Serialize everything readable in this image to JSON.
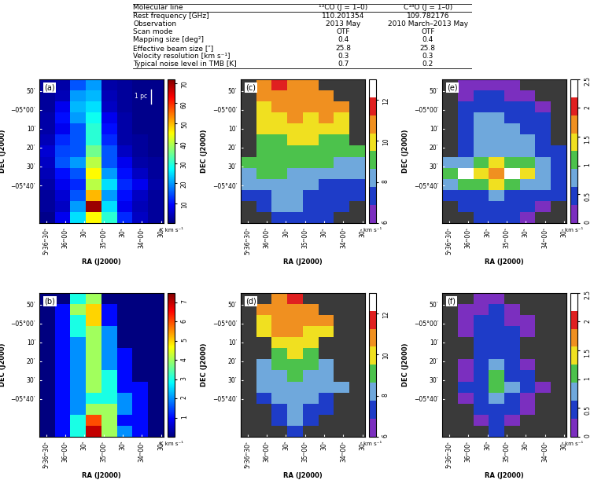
{
  "table": {
    "header": [
      "Molecular line",
      "¹³CO (J = 1–0)",
      "C¹⁸O (J = 1–0)"
    ],
    "rows": [
      [
        "Rest frequency [GHz]",
        "110.201354",
        "109.782176"
      ],
      [
        "Observation",
        "2013 May",
        "2010 March–2013 May"
      ],
      [
        "Scan mode",
        "OTF",
        "OTF"
      ],
      [
        "Mapping size [deg²]",
        "0.4",
        "0.4"
      ],
      [
        "Effective beam size [″]",
        "25.8",
        "25.8"
      ],
      [
        "Velocity resolution [km s⁻¹]",
        "0.3",
        "0.3"
      ],
      [
        "Typical noise level in TMB [K]",
        "0.7",
        "0.2"
      ]
    ]
  },
  "axes": {
    "xlabel": "RA (J2000)",
    "ylabel": "DEC (J2000)",
    "xlim": [
      84.17,
      83.36
    ],
    "ylim": [
      -6.0,
      -4.73
    ],
    "xticks": [
      {
        "value": 84.125,
        "label": "5ʰ36ᵐ30ˢ"
      },
      {
        "value": 84.0,
        "label": "36ᵐ00ˢ"
      },
      {
        "value": 83.875,
        "label": "30ˢ"
      },
      {
        "value": 83.75,
        "label": "35ᵐ00ˢ"
      },
      {
        "value": 83.625,
        "label": "30ˢ"
      },
      {
        "value": 83.5,
        "label": "34ᵐ00ˢ"
      },
      {
        "value": 83.375,
        "label": "30ˢ"
      }
    ],
    "yticks": [
      {
        "value": -5.6667,
        "label": "−05°40′"
      },
      {
        "value": -5.5,
        "label": "30′"
      },
      {
        "value": -5.3333,
        "label": "20′"
      },
      {
        "value": -5.1667,
        "label": "10′"
      },
      {
        "value": -5.0,
        "label": "−05°00′"
      },
      {
        "value": -4.8333,
        "label": "50′"
      }
    ]
  },
  "chart_data": [
    {
      "type": "heatmap",
      "label": "(a)",
      "scale_bar": "1 pc",
      "extent": [
        84.17,
        83.36,
        -6.0,
        -4.73
      ],
      "colors": [
        "#00007f",
        "#0000ff",
        "#007fff",
        "#00ffff",
        "#7fff7f",
        "#ffff00",
        "#ff7f00",
        "#ff0000",
        "#7f0000"
      ],
      "color_range": [
        0,
        72
      ],
      "color_ticks": [
        10,
        20,
        30,
        40,
        50,
        60,
        70
      ],
      "color_label": "K km s⁻¹",
      "cells": [
        [
          2,
          3,
          15,
          20,
          3,
          2,
          1,
          1
        ],
        [
          2,
          4,
          20,
          22,
          4,
          2,
          1,
          1
        ],
        [
          2,
          8,
          22,
          25,
          5,
          2,
          1,
          1
        ],
        [
          3,
          10,
          20,
          28,
          8,
          3,
          1,
          1
        ],
        [
          3,
          8,
          15,
          30,
          10,
          3,
          1,
          1
        ],
        [
          4,
          12,
          15,
          30,
          12,
          3,
          2,
          1
        ],
        [
          6,
          14,
          15,
          35,
          15,
          5,
          2,
          1
        ],
        [
          5,
          15,
          20,
          40,
          15,
          8,
          3,
          2
        ],
        [
          4,
          10,
          15,
          45,
          20,
          10,
          5,
          2
        ],
        [
          3,
          8,
          12,
          40,
          25,
          12,
          8,
          3
        ],
        [
          2,
          6,
          15,
          50,
          20,
          10,
          5,
          2
        ],
        [
          2,
          5,
          20,
          70,
          25,
          8,
          4,
          2
        ],
        [
          1,
          8,
          25,
          45,
          30,
          12,
          5,
          2
        ]
      ]
    },
    {
      "type": "contour",
      "label": "(c)",
      "extent": [
        84.17,
        83.36,
        -6.0,
        -4.73
      ],
      "colors": [
        "#7b2fbf",
        "#1e3cc8",
        "#6fa8dc",
        "#4cc24c",
        "#f0e020",
        "#f09020",
        "#e02020",
        "#ffffff"
      ],
      "color_range": [
        6,
        13
      ],
      "color_ticks": [
        6,
        8,
        10,
        12
      ],
      "color_label": "km s⁻¹",
      "cells": [
        [
          null,
          11,
          12,
          11,
          11,
          null,
          null,
          null
        ],
        [
          null,
          11,
          11,
          11,
          11,
          11,
          null,
          null
        ],
        [
          null,
          10,
          11,
          11,
          11,
          11,
          11,
          null
        ],
        [
          null,
          10,
          10,
          11,
          10,
          11,
          10,
          null
        ],
        [
          null,
          10,
          10,
          10,
          10,
          10,
          10,
          null
        ],
        [
          null,
          9,
          9,
          10,
          10,
          9,
          9,
          null
        ],
        [
          null,
          9,
          9,
          9,
          9,
          9,
          9,
          9
        ],
        [
          9,
          9,
          9,
          9,
          9,
          9,
          8,
          8
        ],
        [
          8,
          9,
          9,
          8,
          8,
          8,
          8,
          8
        ],
        [
          8,
          8,
          8,
          8,
          8,
          7,
          7,
          7
        ],
        [
          7,
          7,
          8,
          8,
          7,
          7,
          7,
          7
        ],
        [
          null,
          7,
          8,
          8,
          7,
          7,
          7,
          null
        ],
        [
          null,
          null,
          7,
          7,
          7,
          7,
          null,
          null
        ]
      ]
    },
    {
      "type": "contour",
      "label": "(e)",
      "extent": [
        84.17,
        83.36,
        -6.0,
        -4.73
      ],
      "colors": [
        "#7b2fbf",
        "#1e3cc8",
        "#6fa8dc",
        "#4cc24c",
        "#f0e020",
        "#f09020",
        "#e02020",
        "#ffffff"
      ],
      "color_range": [
        0,
        2.5
      ],
      "color_ticks": [
        0,
        0.5,
        1,
        1.5,
        2,
        2.5
      ],
      "color_label": "km s⁻¹",
      "cells": [
        [
          null,
          0.3,
          0.3,
          0.3,
          0.3,
          null,
          null,
          null
        ],
        [
          null,
          0.3,
          0.4,
          0.4,
          0.3,
          0.3,
          null,
          null
        ],
        [
          null,
          0.4,
          0.6,
          0.6,
          0.5,
          0.4,
          0.3,
          null
        ],
        [
          null,
          0.4,
          0.7,
          0.7,
          0.6,
          0.5,
          0.4,
          null
        ],
        [
          null,
          0.5,
          0.7,
          0.8,
          0.7,
          0.6,
          0.5,
          null
        ],
        [
          null,
          0.6,
          0.7,
          0.8,
          0.8,
          0.7,
          0.6,
          null
        ],
        [
          null,
          0.6,
          0.8,
          0.9,
          0.8,
          0.7,
          0.6,
          0.5
        ],
        [
          0.7,
          0.9,
          1.2,
          1.5,
          1.2,
          1.0,
          0.8,
          0.6
        ],
        [
          1.0,
          2.2,
          1.5,
          1.8,
          2.4,
          1.4,
          0.9,
          0.6
        ],
        [
          0.8,
          1.2,
          1.0,
          1.3,
          1.0,
          0.9,
          0.7,
          0.5
        ],
        [
          0.5,
          0.6,
          0.6,
          0.7,
          0.6,
          0.5,
          0.4,
          0.4
        ],
        [
          null,
          0.4,
          0.5,
          0.6,
          0.5,
          0.4,
          0.3,
          null
        ],
        [
          null,
          null,
          0.4,
          0.5,
          0.4,
          0.3,
          null,
          null
        ]
      ]
    },
    {
      "type": "heatmap",
      "label": "(b)",
      "extent": [
        84.17,
        83.36,
        -6.0,
        -4.73
      ],
      "colors": [
        "#00007f",
        "#0000ff",
        "#007fff",
        "#00ffff",
        "#7fff7f",
        "#ffff00",
        "#ff7f00",
        "#ff0000",
        "#7f0000"
      ],
      "color_range": [
        0,
        7.5
      ],
      "color_ticks": [
        1,
        2,
        3,
        4,
        5,
        6,
        7
      ],
      "color_label": "K km s⁻¹",
      "cells": [
        [
          0,
          0,
          3,
          4,
          0,
          0,
          0,
          0
        ],
        [
          0,
          1,
          4,
          5,
          1,
          0,
          0,
          0
        ],
        [
          0,
          1,
          3,
          5,
          1,
          0,
          0,
          0
        ],
        [
          0,
          1,
          3,
          4,
          2,
          0,
          0,
          0
        ],
        [
          0,
          1,
          2,
          4,
          2,
          0,
          0,
          0
        ],
        [
          0,
          1,
          2,
          4,
          2,
          1,
          0,
          0
        ],
        [
          0,
          1,
          2,
          4,
          2,
          1,
          0,
          0
        ],
        [
          0,
          1,
          2,
          4,
          3,
          1,
          0,
          0
        ],
        [
          0,
          1,
          2,
          4,
          3,
          1,
          1,
          0
        ],
        [
          0,
          1,
          2,
          3,
          3,
          2,
          1,
          0
        ],
        [
          0,
          1,
          2,
          4,
          4,
          2,
          1,
          0
        ],
        [
          0,
          1,
          3,
          6,
          4,
          1,
          1,
          0
        ],
        [
          0,
          1,
          3,
          7,
          4,
          2,
          1,
          0
        ]
      ]
    },
    {
      "type": "contour",
      "label": "(d)",
      "extent": [
        84.17,
        83.36,
        -6.0,
        -4.73
      ],
      "colors": [
        "#7b2fbf",
        "#1e3cc8",
        "#6fa8dc",
        "#4cc24c",
        "#f0e020",
        "#f09020",
        "#e02020",
        "#ffffff"
      ],
      "color_range": [
        6,
        13
      ],
      "color_ticks": [
        6,
        8,
        10,
        12
      ],
      "color_label": "km s⁻¹",
      "cells": [
        [
          null,
          null,
          11,
          12,
          null,
          null,
          null,
          null
        ],
        [
          null,
          11,
          11,
          11,
          11,
          null,
          null,
          null
        ],
        [
          null,
          10,
          11,
          11,
          11,
          11,
          null,
          null
        ],
        [
          null,
          10,
          11,
          11,
          10,
          10,
          null,
          null
        ],
        [
          null,
          null,
          10,
          10,
          10,
          null,
          null,
          null
        ],
        [
          null,
          null,
          9,
          10,
          9,
          null,
          null,
          null
        ],
        [
          null,
          8,
          9,
          9,
          9,
          8,
          null,
          null
        ],
        [
          null,
          8,
          8,
          9,
          8,
          8,
          null,
          null
        ],
        [
          null,
          8,
          8,
          8,
          8,
          8,
          8,
          null
        ],
        [
          null,
          7,
          8,
          8,
          8,
          7,
          null,
          null
        ],
        [
          null,
          null,
          7,
          8,
          7,
          7,
          null,
          null
        ],
        [
          null,
          null,
          7,
          8,
          7,
          null,
          null,
          null
        ],
        [
          null,
          null,
          null,
          7,
          null,
          null,
          null,
          null
        ]
      ]
    },
    {
      "type": "contour",
      "label": "(f)",
      "extent": [
        84.17,
        83.36,
        -6.0,
        -4.73
      ],
      "colors": [
        "#7b2fbf",
        "#1e3cc8",
        "#6fa8dc",
        "#4cc24c",
        "#f0e020",
        "#f09020",
        "#e02020",
        "#ffffff"
      ],
      "color_range": [
        0,
        2.5
      ],
      "color_ticks": [
        0,
        0.5,
        1,
        1.5,
        2,
        2.5
      ],
      "color_label": "km s⁻¹",
      "cells": [
        [
          null,
          null,
          0.3,
          0.3,
          null,
          null,
          null,
          null
        ],
        [
          null,
          0.3,
          0.3,
          0.4,
          0.3,
          null,
          null,
          null
        ],
        [
          null,
          0.3,
          0.4,
          0.4,
          0.3,
          0.3,
          null,
          null
        ],
        [
          null,
          0.3,
          0.4,
          0.5,
          0.4,
          0.3,
          null,
          null
        ],
        [
          null,
          null,
          0.4,
          0.5,
          0.4,
          null,
          null,
          null
        ],
        [
          null,
          null,
          0.4,
          0.6,
          0.4,
          null,
          null,
          null
        ],
        [
          null,
          0.3,
          0.5,
          0.7,
          0.5,
          0.3,
          null,
          null
        ],
        [
          null,
          0.3,
          0.6,
          1.0,
          0.6,
          0.4,
          null,
          null
        ],
        [
          null,
          0.4,
          0.6,
          1.2,
          0.7,
          0.4,
          0.3,
          null
        ],
        [
          null,
          0.3,
          0.5,
          0.8,
          0.5,
          0.3,
          null,
          null
        ],
        [
          null,
          null,
          0.4,
          0.6,
          0.4,
          0.3,
          null,
          null
        ],
        [
          null,
          null,
          0.3,
          0.5,
          0.3,
          null,
          null,
          null
        ],
        [
          null,
          null,
          null,
          0.4,
          null,
          null,
          null,
          null
        ]
      ]
    }
  ]
}
